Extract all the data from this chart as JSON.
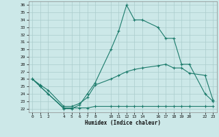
{
  "xlabel": "Humidex (Indice chaleur)",
  "background_color": "#cce8e8",
  "grid_color": "#aacccc",
  "line_color": "#1a7a6a",
  "x_ticks": [
    0,
    1,
    2,
    4,
    5,
    6,
    7,
    8,
    10,
    11,
    12,
    13,
    14,
    16,
    17,
    18,
    19,
    20,
    22,
    23
  ],
  "yticks": [
    22,
    23,
    24,
    25,
    26,
    27,
    28,
    29,
    30,
    31,
    32,
    33,
    34,
    35,
    36
  ],
  "ylim": [
    21.5,
    36.5
  ],
  "xlim": [
    -0.5,
    23.5
  ],
  "series_max": {
    "x": [
      0,
      1,
      2,
      4,
      5,
      6,
      7,
      8,
      10,
      11,
      12,
      13,
      14,
      16,
      17,
      18,
      19,
      20,
      22,
      23
    ],
    "y": [
      26.0,
      25.0,
      24.0,
      22.0,
      22.0,
      22.5,
      24.0,
      25.5,
      30.0,
      32.5,
      36.0,
      34.0,
      34.0,
      33.0,
      31.5,
      31.5,
      28.0,
      28.0,
      24.0,
      23.0
    ]
  },
  "series_mean": {
    "x": [
      0,
      1,
      2,
      4,
      5,
      6,
      7,
      8,
      10,
      11,
      12,
      13,
      14,
      16,
      17,
      18,
      19,
      20,
      22,
      23
    ],
    "y": [
      26.0,
      25.2,
      24.5,
      22.3,
      22.3,
      22.7,
      23.5,
      25.2,
      26.0,
      26.5,
      27.0,
      27.3,
      27.5,
      27.8,
      28.0,
      27.5,
      27.5,
      26.8,
      26.5,
      23.2
    ]
  },
  "series_min": {
    "x": [
      0,
      1,
      2,
      4,
      5,
      6,
      7,
      8,
      10,
      11,
      12,
      13,
      14,
      16,
      17,
      18,
      19,
      20,
      22,
      23
    ],
    "y": [
      26.0,
      25.0,
      24.0,
      22.1,
      22.1,
      22.1,
      22.1,
      22.3,
      22.3,
      22.3,
      22.3,
      22.3,
      22.3,
      22.3,
      22.3,
      22.3,
      22.3,
      22.3,
      22.3,
      22.3
    ]
  }
}
